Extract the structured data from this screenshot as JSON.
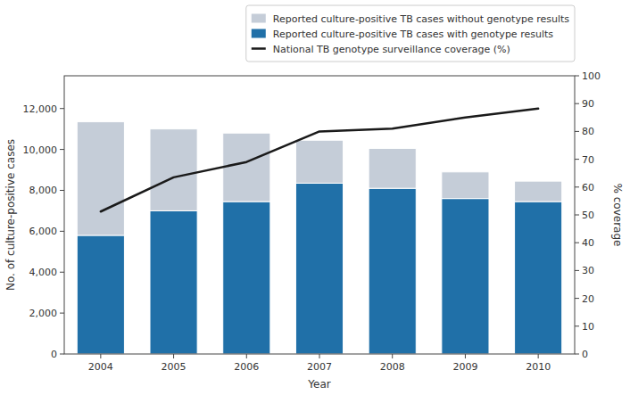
{
  "chart_data": {
    "type": "bar",
    "xlabel": "Year",
    "ylabel": "No. of culture-positive cases",
    "y2label": "% coverage",
    "categories": [
      "2004",
      "2005",
      "2006",
      "2007",
      "2008",
      "2009",
      "2010"
    ],
    "stacked": true,
    "grid": false,
    "legend": "upper right",
    "ylim": [
      0,
      13600
    ],
    "yticks": [
      0,
      {
        "value": 2000,
        "label": "2,000"
      },
      {
        "value": 4000,
        "label": "4,000"
      },
      {
        "value": 6000,
        "label": "6,000"
      },
      {
        "value": 8000,
        "label": "8,000"
      },
      {
        "value": 10000,
        "label": "10,000"
      },
      {
        "value": 12000,
        "label": "12,000"
      }
    ],
    "y2lim": [
      0,
      100
    ],
    "y2ticks": [
      0,
      10,
      20,
      30,
      40,
      50,
      60,
      70,
      80,
      90,
      100
    ],
    "series": [
      {
        "name": "Reported culture-positive TB cases with genotype results",
        "color": "#2070a8",
        "values": [
          5800,
          7000,
          7450,
          8350,
          8100,
          7600,
          7450
        ]
      },
      {
        "name": "Reported culture-positive TB cases without genotype results",
        "color": "#c5cdd8",
        "values": [
          5550,
          4000,
          3350,
          2100,
          1950,
          1300,
          1000
        ]
      },
      {
        "name": "National TB genotype surveillance coverage (%)",
        "type": "line",
        "axis": "y2",
        "color": "#1a1a1a",
        "values": [
          51.2,
          63.5,
          69.0,
          80.0,
          81.0,
          85.0,
          88.2
        ]
      }
    ]
  }
}
